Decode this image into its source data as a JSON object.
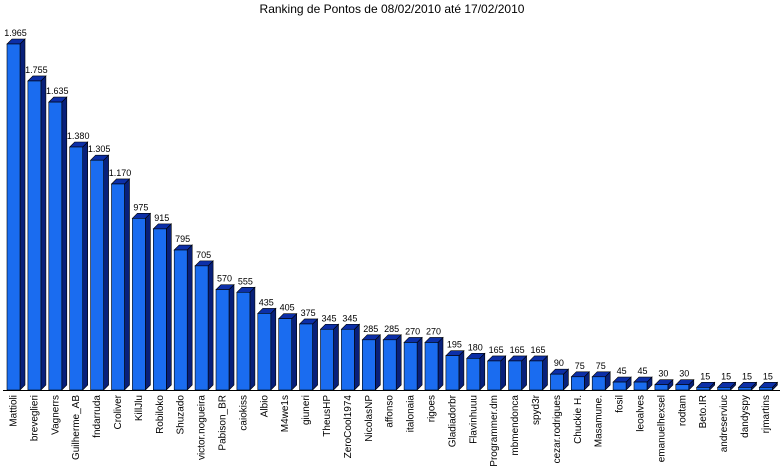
{
  "chart_data": {
    "type": "bar",
    "title": "Ranking de Pontos de 08/02/2010 até 17/02/2010",
    "xlabel": "",
    "ylabel": "",
    "ylim": [
      0,
      1965
    ],
    "grid": false,
    "categories": [
      "Mattioli",
      "breveglieri",
      "Vagnerrs",
      "Guilherme_AB",
      "fndarruda",
      "Croliver",
      "KillJlu",
      "Robiloko",
      "Shuzado",
      "victor.nogueira",
      "Pabison_BR",
      "caiokiss",
      "Albio",
      "M4we1s",
      "giuneri",
      "TheusHP",
      "ZeroCool1974",
      "NicolasNP",
      "affonso",
      "italonaia",
      "rigoes",
      "Gladiadorbr",
      "Flavinhuuu",
      "Programmer.dm",
      "mbmendonca",
      "spyd3r",
      "cezar.rodrigues",
      "Chuckie H.",
      "Masamune.",
      "fosil",
      "leoalves",
      "emanuelhexsel",
      "rodtam",
      "Beto.IR",
      "andreserviuc",
      "dandyspy",
      "rjmartins"
    ],
    "labels": [
      "1.965",
      "1.755",
      "1.635",
      "1.380",
      "1.305",
      "1.170",
      "975",
      "915",
      "795",
      "705",
      "570",
      "555",
      "435",
      "405",
      "375",
      "345",
      "345",
      "285",
      "285",
      "270",
      "270",
      "195",
      "180",
      "165",
      "165",
      "165",
      "90",
      "75",
      "75",
      "45",
      "45",
      "30",
      "30",
      "15",
      "15",
      "15",
      "15"
    ],
    "values": [
      1965,
      1755,
      1635,
      1380,
      1305,
      1170,
      975,
      915,
      795,
      705,
      570,
      555,
      435,
      405,
      375,
      345,
      345,
      285,
      285,
      270,
      270,
      195,
      180,
      165,
      165,
      165,
      90,
      75,
      75,
      45,
      45,
      30,
      30,
      15,
      15,
      15,
      15
    ],
    "colors": {
      "front": "#1a6cf0",
      "top": "#0c2fa8",
      "side": "#08207a",
      "outline": "#000000",
      "axis": "#000000"
    }
  }
}
